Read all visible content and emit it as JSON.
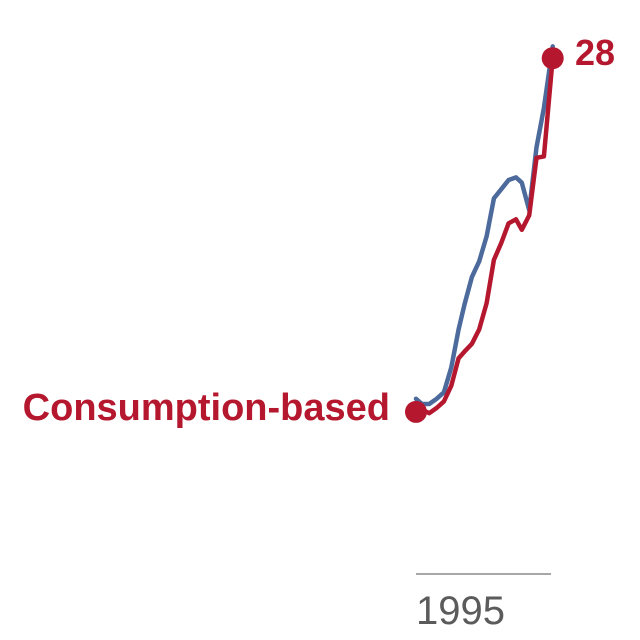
{
  "chart_data": {
    "type": "line",
    "title": "",
    "xlabel": "",
    "ylabel": "",
    "x_ticks": [
      "1995"
    ],
    "series": [
      {
        "name": "",
        "color": "#4c6a9c",
        "points": [
          [
            1995.0,
            2.0
          ],
          [
            1995.4,
            1.6
          ],
          [
            1995.9,
            1.6
          ],
          [
            1996.4,
            2.0
          ],
          [
            1996.9,
            2.5
          ],
          [
            1997.4,
            4.4
          ],
          [
            1997.9,
            7.3
          ],
          [
            1998.3,
            9.2
          ],
          [
            1998.8,
            11.3
          ],
          [
            1999.3,
            12.5
          ],
          [
            1999.8,
            14.4
          ],
          [
            2000.3,
            17.3
          ],
          [
            2000.8,
            18.0
          ],
          [
            2001.3,
            18.7
          ],
          [
            2001.8,
            18.9
          ],
          [
            2002.2,
            18.5
          ],
          [
            2002.7,
            16.4
          ],
          [
            2003.2,
            21.2
          ],
          [
            2003.7,
            24.2
          ],
          [
            2004.3,
            28.9
          ]
        ]
      },
      {
        "name": "Consumption-based",
        "color": "#b5182e",
        "points": [
          [
            1995.0,
            1.0
          ],
          [
            1995.4,
            1.2
          ],
          [
            1995.9,
            0.9
          ],
          [
            1996.4,
            1.3
          ],
          [
            1996.9,
            1.8
          ],
          [
            1997.4,
            3.0
          ],
          [
            1997.9,
            5.1
          ],
          [
            1998.3,
            5.6
          ],
          [
            1998.8,
            6.2
          ],
          [
            1999.3,
            7.3
          ],
          [
            1999.8,
            9.3
          ],
          [
            2000.3,
            12.6
          ],
          [
            2000.8,
            13.9
          ],
          [
            2001.3,
            15.4
          ],
          [
            2001.8,
            15.7
          ],
          [
            2002.2,
            14.9
          ],
          [
            2002.7,
            16.0
          ],
          [
            2003.2,
            20.4
          ],
          [
            2003.7,
            20.5
          ],
          [
            2004.3,
            28.0
          ]
        ]
      }
    ],
    "start_label": "Consumption-based",
    "end_label": "28"
  }
}
